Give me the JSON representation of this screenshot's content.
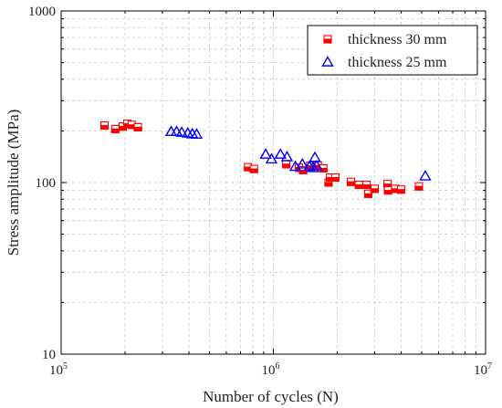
{
  "chart_data": {
    "type": "scatter",
    "xlabel": "Number of cycles (N)",
    "ylabel": "Stress amplitude (MPa)",
    "x_scale": "log",
    "y_scale": "log",
    "xlim": [
      100000,
      10000000
    ],
    "ylim": [
      10,
      1000
    ],
    "x_ticks": [
      {
        "value": 100000,
        "base": "10",
        "exp": "5"
      },
      {
        "value": 1000000,
        "base": "10",
        "exp": "6"
      },
      {
        "value": 10000000,
        "base": "10",
        "exp": "7"
      }
    ],
    "y_ticks": [
      {
        "value": 10,
        "label": "10"
      },
      {
        "value": 100,
        "label": "100"
      },
      {
        "value": 1000,
        "label": "1000"
      }
    ],
    "grid": true,
    "legend_position": "top-right",
    "series": [
      {
        "name": "thickness 30 mm",
        "marker": "square",
        "color": "#ff0000",
        "points": [
          [
            160000,
            215
          ],
          [
            180000,
            205
          ],
          [
            195000,
            212
          ],
          [
            205000,
            220
          ],
          [
            215000,
            217
          ],
          [
            230000,
            210
          ],
          [
            760000,
            123
          ],
          [
            810000,
            120
          ],
          [
            1150000,
            128
          ],
          [
            1320000,
            122
          ],
          [
            1380000,
            118
          ],
          [
            1490000,
            125
          ],
          [
            1620000,
            126
          ],
          [
            1720000,
            121
          ],
          [
            1820000,
            100
          ],
          [
            1850000,
            107
          ],
          [
            1960000,
            107
          ],
          [
            2320000,
            101
          ],
          [
            2530000,
            97
          ],
          [
            2750000,
            97
          ],
          [
            2800000,
            86
          ],
          [
            3000000,
            92
          ],
          [
            3450000,
            98
          ],
          [
            3470000,
            90
          ],
          [
            3750000,
            92
          ],
          [
            4000000,
            91
          ],
          [
            4850000,
            95
          ]
        ]
      },
      {
        "name": "thickness 25 mm",
        "marker": "triangle",
        "color": "#0000ff",
        "points": [
          [
            330000,
            198
          ],
          [
            350000,
            198
          ],
          [
            370000,
            196
          ],
          [
            395000,
            194
          ],
          [
            415000,
            192
          ],
          [
            435000,
            191
          ],
          [
            920000,
            146
          ],
          [
            980000,
            137
          ],
          [
            1080000,
            146
          ],
          [
            1160000,
            141
          ],
          [
            1270000,
            124
          ],
          [
            1370000,
            128
          ],
          [
            1480000,
            124
          ],
          [
            1540000,
            122
          ],
          [
            1570000,
            140
          ],
          [
            1600000,
            125
          ],
          [
            5200000,
            109
          ]
        ]
      }
    ]
  }
}
